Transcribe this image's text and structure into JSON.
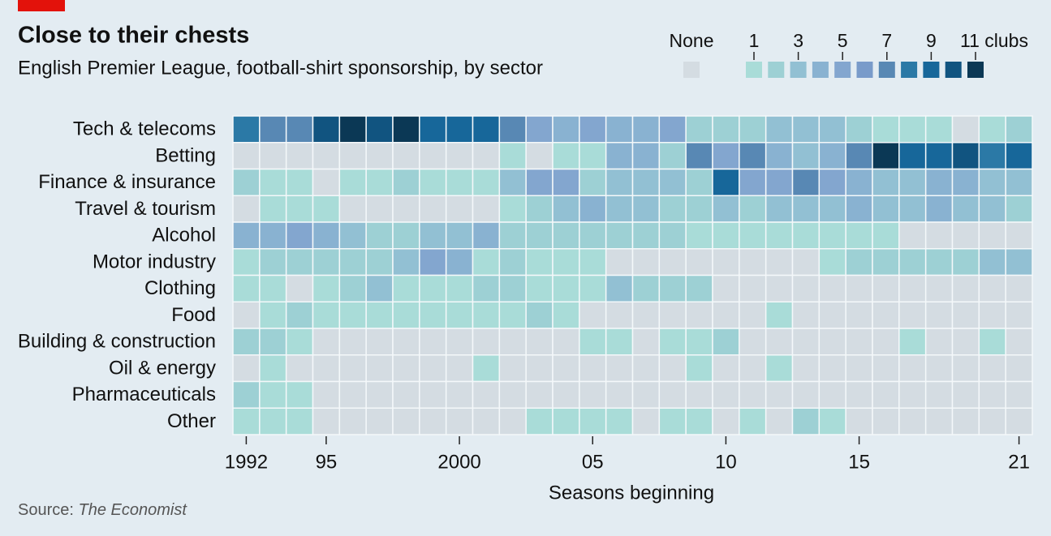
{
  "chart_data": {
    "type": "heatmap",
    "title": "Close to their chests",
    "subtitle": "English Premier League, football-shirt sponsorship, by sector",
    "xlabel": "Seasons beginning",
    "source_label": "Source:",
    "source": "The Economist",
    "x": [
      1992,
      1993,
      1994,
      1995,
      1996,
      1997,
      1998,
      1999,
      2000,
      2001,
      2002,
      2003,
      2004,
      2005,
      2006,
      2007,
      2008,
      2009,
      2010,
      2011,
      2012,
      2013,
      2014,
      2015,
      2016,
      2017,
      2018,
      2019,
      2020,
      2021
    ],
    "xlim": [
      1991.5,
      2021.5
    ],
    "xticks": [
      1992,
      {
        "value": 1995,
        "label": "95"
      },
      2000,
      {
        "value": 2005,
        "label": "05"
      },
      {
        "value": 2010,
        "label": "10"
      },
      {
        "value": 2015,
        "label": "15"
      },
      {
        "value": 2021,
        "label": "21"
      }
    ],
    "categories": [
      "Tech & telecoms",
      "Betting",
      "Finance & insurance",
      "Travel & tourism",
      "Alcohol",
      "Motor industry",
      "Clothing",
      "Food",
      "Building & construction",
      "Oil & energy",
      "Pharmaceuticals",
      "Other"
    ],
    "values": [
      [
        8,
        7,
        7,
        10,
        11,
        10,
        11,
        9,
        9,
        9,
        7,
        5,
        4,
        5,
        4,
        4,
        5,
        2,
        2,
        2,
        3,
        3,
        3,
        2,
        1,
        1,
        1,
        0,
        1,
        2
      ],
      [
        0,
        0,
        0,
        0,
        0,
        0,
        0,
        0,
        0,
        0,
        1,
        0,
        1,
        1,
        4,
        4,
        2,
        7,
        5,
        7,
        4,
        3,
        4,
        7,
        11,
        9,
        9,
        10,
        8,
        9
      ],
      [
        2,
        1,
        1,
        0,
        1,
        1,
        2,
        1,
        1,
        1,
        3,
        5,
        5,
        2,
        3,
        3,
        3,
        2,
        9,
        5,
        5,
        7,
        5,
        4,
        3,
        3,
        4,
        4,
        3,
        3
      ],
      [
        0,
        1,
        1,
        1,
        0,
        0,
        0,
        0,
        0,
        0,
        1,
        2,
        3,
        4,
        3,
        3,
        2,
        2,
        3,
        2,
        3,
        3,
        3,
        4,
        3,
        3,
        4,
        3,
        3,
        2
      ],
      [
        4,
        4,
        5,
        4,
        3,
        2,
        2,
        3,
        3,
        4,
        2,
        2,
        2,
        2,
        2,
        2,
        2,
        1,
        1,
        1,
        1,
        1,
        1,
        1,
        1,
        0,
        0,
        0,
        0,
        0
      ],
      [
        1,
        2,
        2,
        2,
        2,
        2,
        3,
        5,
        4,
        1,
        2,
        1,
        1,
        1,
        0,
        0,
        0,
        0,
        0,
        0,
        0,
        0,
        1,
        2,
        2,
        2,
        2,
        2,
        3,
        3
      ],
      [
        1,
        1,
        0,
        1,
        2,
        3,
        1,
        1,
        1,
        2,
        2,
        1,
        1,
        1,
        3,
        2,
        2,
        2,
        0,
        0,
        0,
        0,
        0,
        0,
        0,
        0,
        0,
        0,
        0,
        0
      ],
      [
        0,
        1,
        2,
        1,
        1,
        1,
        1,
        1,
        1,
        1,
        1,
        2,
        1,
        0,
        0,
        0,
        0,
        0,
        0,
        0,
        1,
        0,
        0,
        0,
        0,
        0,
        0,
        0,
        0,
        0
      ],
      [
        2,
        2,
        1,
        0,
        0,
        0,
        0,
        0,
        0,
        0,
        0,
        0,
        0,
        1,
        1,
        0,
        1,
        1,
        2,
        0,
        0,
        0,
        0,
        0,
        0,
        1,
        0,
        0,
        1,
        0
      ],
      [
        0,
        1,
        0,
        0,
        0,
        0,
        0,
        0,
        0,
        1,
        0,
        0,
        0,
        0,
        0,
        0,
        0,
        1,
        0,
        0,
        1,
        0,
        0,
        0,
        0,
        0,
        0,
        0,
        0,
        0
      ],
      [
        2,
        1,
        1,
        0,
        0,
        0,
        0,
        0,
        0,
        0,
        0,
        0,
        0,
        0,
        0,
        0,
        0,
        0,
        0,
        0,
        0,
        0,
        0,
        0,
        0,
        0,
        0,
        0,
        0,
        0
      ],
      [
        1,
        1,
        1,
        0,
        0,
        0,
        0,
        0,
        0,
        0,
        0,
        1,
        1,
        1,
        1,
        0,
        1,
        1,
        0,
        1,
        0,
        2,
        1,
        0,
        0,
        0,
        0,
        0,
        0,
        0
      ]
    ],
    "colors": [
      "#d4dce2",
      "#a9dcd8",
      "#9dd0d4",
      "#92c0d3",
      "#89b2d1",
      "#83a6cf",
      "#799bca",
      "#5888b4",
      "#2b79a6",
      "#17679a",
      "#115480",
      "#0b3855"
    ],
    "legend_ticks": [
      {
        "value": 0,
        "label": "None"
      },
      1,
      3,
      5,
      7,
      9,
      {
        "value": 11,
        "label": "11 clubs"
      }
    ]
  }
}
